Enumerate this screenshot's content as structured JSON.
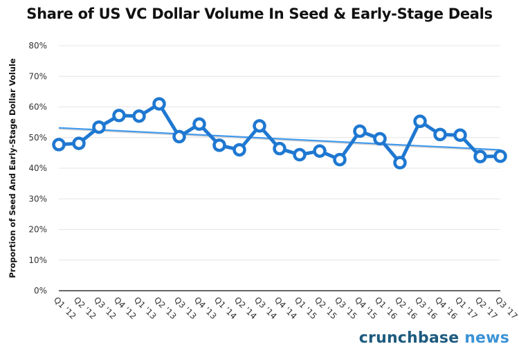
{
  "chart_data": {
    "type": "line",
    "title": "Share of US VC Dollar Volume In Seed & Early-Stage Deals",
    "xlabel": "",
    "ylabel": "Proportion of Seed And Early-Stage Dollar Volule",
    "ylim": [
      0,
      80
    ],
    "yticks": [
      "0%",
      "10%",
      "20%",
      "30%",
      "40%",
      "50%",
      "60%",
      "70%",
      "80%"
    ],
    "grid": true,
    "categories": [
      "Q1 '12",
      "Q2 '12",
      "Q3 '12",
      "Q4 '12",
      "Q1 '13",
      "Q2 '13",
      "Q3 '13",
      "Q4 '13",
      "Q1 '14",
      "Q2 '14",
      "Q3 '14",
      "Q4 '14",
      "Q1 '15",
      "Q2 '15",
      "Q3 '15",
      "Q4 '15",
      "Q1 '16",
      "Q2 '16",
      "Q3 '16",
      "Q4 '16",
      "Q1 '17",
      "Q2 '17",
      "Q3 '17"
    ],
    "series": [
      {
        "values": [
          47.7,
          48.1,
          53.4,
          57.2,
          57.0,
          61.0,
          50.3,
          54.4,
          47.5,
          46.0,
          53.8,
          46.4,
          44.4,
          45.6,
          42.8,
          52.1,
          49.6,
          41.8,
          55.3,
          51.0,
          50.8,
          43.8,
          43.9
        ],
        "color": "#1f78d1"
      }
    ],
    "trendline": {
      "start": 53.2,
      "end": 46.0,
      "color": "#3a97f0"
    }
  },
  "branding": {
    "logo_part1": "crunchbase",
    "logo_part2": "news"
  }
}
